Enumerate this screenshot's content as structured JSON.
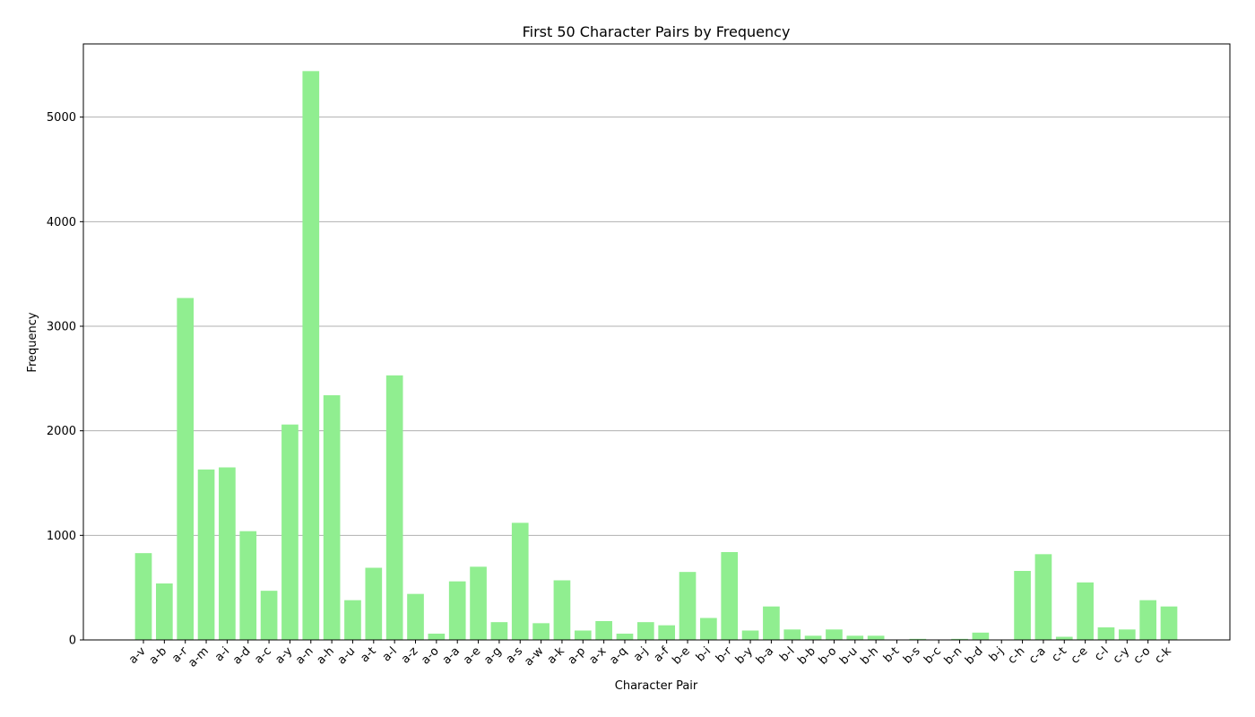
{
  "chart_data": {
    "type": "bar",
    "title": "First 50 Character Pairs by Frequency",
    "xlabel": "Character Pair",
    "ylabel": "Frequency",
    "ylim": [
      0,
      5700
    ],
    "yticks": [
      0,
      1000,
      2000,
      3000,
      4000,
      5000
    ],
    "grid": "y",
    "bar_color": "#90ee90",
    "grid_color": "#b0b0b0",
    "categories": [
      "a-v",
      "a-b",
      "a-r",
      "a-m",
      "a-i",
      "a-d",
      "a-c",
      "a-y",
      "a-n",
      "a-h",
      "a-u",
      "a-t",
      "a-l",
      "a-z",
      "a-o",
      "a-a",
      "a-e",
      "a-g",
      "a-s",
      "a-w",
      "a-k",
      "a-p",
      "a-x",
      "a-q",
      "a-j",
      "a-f",
      "b-e",
      "b-i",
      "b-r",
      "b-y",
      "b-a",
      "b-l",
      "b-b",
      "b-o",
      "b-u",
      "b-h",
      "b-t",
      "b-s",
      "b-c",
      "b-n",
      "b-d",
      "b-j",
      "c-h",
      "c-a",
      "c-t",
      "c-e",
      "c-l",
      "c-y",
      "c-o",
      "c-k"
    ],
    "values": [
      830,
      540,
      3270,
      1630,
      1650,
      1040,
      470,
      2060,
      5440,
      2340,
      380,
      690,
      2530,
      440,
      60,
      560,
      700,
      170,
      1120,
      160,
      570,
      90,
      180,
      60,
      170,
      140,
      650,
      210,
      840,
      90,
      320,
      100,
      40,
      100,
      40,
      40,
      0,
      10,
      0,
      10,
      70,
      0,
      660,
      820,
      30,
      550,
      120,
      100,
      380,
      320
    ]
  }
}
